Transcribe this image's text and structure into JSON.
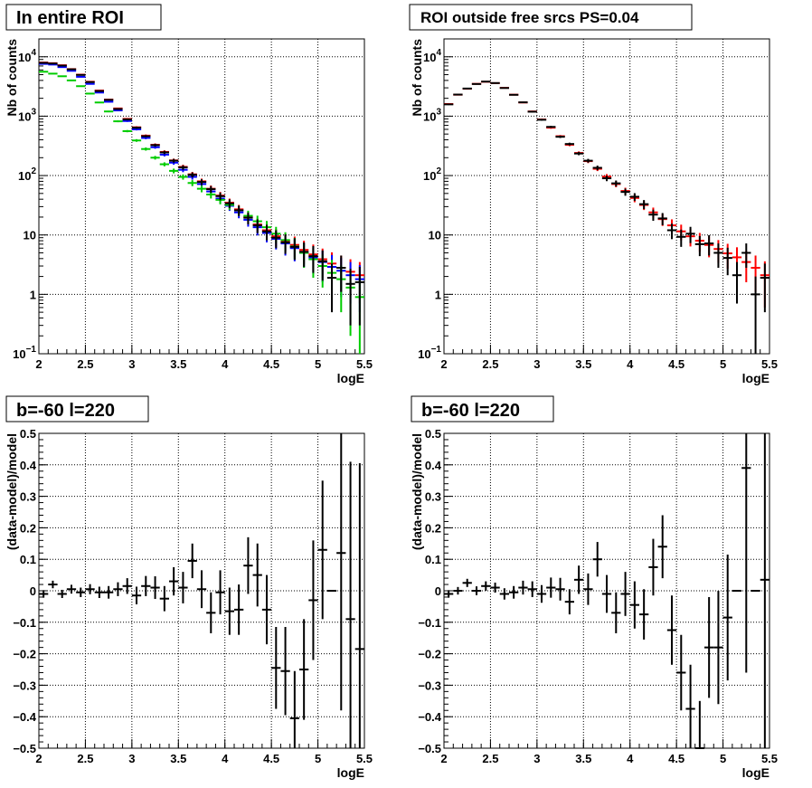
{
  "chart_data": [
    {
      "type": "scatter",
      "title": "In entire ROI",
      "xlabel": "logE",
      "ylabel": "Nb of counts",
      "xlim": [
        2,
        5.5
      ],
      "ylim": [
        0.1,
        20000
      ],
      "yscale": "log",
      "grid": true,
      "x_ticks": [
        "2",
        "2.5",
        "3",
        "3.5",
        "4",
        "4.5",
        "5",
        "5.5"
      ],
      "y_ticks": [
        "10^-1",
        "1",
        "10",
        "10^2",
        "10^3",
        "10^4"
      ],
      "series": [
        {
          "color": "#ff0000",
          "x": [
            2.05,
            2.15,
            2.25,
            2.35,
            2.45,
            2.55,
            2.65,
            2.75,
            2.85,
            2.95,
            3.05,
            3.15,
            3.25,
            3.35,
            3.45,
            3.55,
            3.65,
            3.75,
            3.85,
            3.95,
            4.05,
            4.15,
            4.25,
            4.35,
            4.45,
            4.55,
            4.65,
            4.75,
            4.85,
            4.95,
            5.05,
            5.15,
            5.25,
            5.35,
            5.45
          ],
          "y": [
            8000,
            7800,
            7200,
            6200,
            5000,
            3800,
            2700,
            1900,
            1350,
            900,
            650,
            470,
            330,
            250,
            180,
            140,
            105,
            80,
            60,
            46,
            35,
            27,
            20,
            15,
            12,
            9.5,
            8,
            6.8,
            5.6,
            4.7,
            3.9,
            3.3,
            2.8,
            2.4,
            2.1
          ],
          "yerr": [
            90,
            88,
            85,
            79,
            71,
            62,
            52,
            44,
            37,
            30,
            25,
            22,
            18,
            16,
            13,
            12,
            10,
            9,
            8,
            7,
            6,
            5,
            4.5,
            3.9,
            3.5,
            3.1,
            2.8,
            2.6,
            2.4,
            2.2,
            2.0,
            1.8,
            1.7,
            1.5,
            1.4
          ]
        },
        {
          "color": "#0000ff",
          "x": [
            2.05,
            2.15,
            2.25,
            2.35,
            2.45,
            2.55,
            2.65,
            2.75,
            2.85,
            2.95,
            3.05,
            3.15,
            3.25,
            3.35,
            3.45,
            3.55,
            3.65,
            3.75,
            3.85,
            3.95,
            4.05,
            4.15,
            4.25,
            4.35,
            4.45,
            4.55,
            4.65,
            4.75,
            4.85,
            4.95,
            5.05,
            5.15,
            5.25,
            5.35,
            5.45
          ],
          "y": [
            7600,
            7400,
            6700,
            5800,
            4600,
            3500,
            2500,
            1750,
            1250,
            830,
            600,
            430,
            300,
            225,
            165,
            125,
            95,
            72,
            54,
            41,
            31,
            24,
            18,
            13.5,
            10.8,
            8.6,
            7.2,
            6,
            5,
            4.2,
            3.5,
            2.9,
            2.5,
            2.1,
            1.8
          ],
          "yerr": [
            87,
            86,
            82,
            76,
            68,
            59,
            50,
            42,
            35,
            29,
            24,
            21,
            17,
            15,
            13,
            11,
            9.7,
            8.5,
            7.3,
            6.4,
            5.6,
            4.9,
            4.2,
            3.7,
            3.3,
            2.9,
            2.7,
            2.4,
            2.2,
            2.0,
            1.9,
            1.7,
            1.6,
            1.4,
            1.3
          ]
        },
        {
          "color": "#00cc00",
          "x": [
            2.05,
            2.15,
            2.25,
            2.35,
            2.45,
            2.55,
            2.65,
            2.75,
            2.85,
            2.95,
            3.05,
            3.15,
            3.25,
            3.35,
            3.45,
            3.55,
            3.65,
            3.75,
            3.85,
            3.95,
            4.05,
            4.15,
            4.25,
            4.35,
            4.45,
            4.55,
            4.65,
            4.75,
            4.85,
            4.95,
            5.05,
            5.15,
            5.25,
            5.35,
            5.45
          ],
          "y": [
            5600,
            5200,
            4700,
            4000,
            3200,
            2400,
            1700,
            1200,
            820,
            560,
            390,
            280,
            200,
            155,
            120,
            95,
            75,
            60,
            48,
            39,
            32,
            26,
            21,
            17,
            13.5,
            10.5,
            8.2,
            6.4,
            5,
            3.9,
            3.0,
            2.3,
            1.8,
            1.3,
            0.9
          ],
          "yerr": [
            75,
            72,
            69,
            63,
            57,
            49,
            41,
            35,
            29,
            24,
            20,
            17,
            14,
            12,
            11,
            9.7,
            8.7,
            7.7,
            6.9,
            6.2,
            5.7,
            5.1,
            4.6,
            4.1,
            3.7,
            3.2,
            2.9,
            2.5,
            2.2,
            2.0,
            1.7,
            1.5,
            1.3,
            1.1,
            0.9
          ]
        },
        {
          "color": "#000000",
          "x": [
            2.05,
            2.15,
            2.25,
            2.35,
            2.45,
            2.55,
            2.65,
            2.75,
            2.85,
            2.95,
            3.05,
            3.15,
            3.25,
            3.35,
            3.45,
            3.55,
            3.65,
            3.75,
            3.85,
            3.95,
            4.05,
            4.15,
            4.25,
            4.35,
            4.45,
            4.55,
            4.65,
            4.75,
            4.85,
            4.95,
            5.05,
            5.15,
            5.25,
            5.35,
            5.45
          ],
          "y": [
            7900,
            7700,
            7100,
            6150,
            4950,
            3750,
            2650,
            1880,
            1320,
            880,
            640,
            460,
            325,
            245,
            178,
            137,
            103,
            78,
            59,
            45,
            34,
            26,
            19.5,
            14.5,
            11.5,
            9,
            7.5,
            6.3,
            5.2,
            4.4,
            3.6,
            1.9,
            2.8,
            1.5,
            1.6
          ],
          "yerr": [
            89,
            88,
            84,
            78,
            70,
            61,
            51,
            43,
            36,
            30,
            25,
            21,
            18,
            16,
            13,
            12,
            10,
            8.8,
            7.7,
            6.7,
            5.8,
            5.1,
            4.4,
            3.8,
            3.4,
            3.0,
            2.7,
            2.5,
            2.3,
            2.1,
            1.9,
            1.4,
            1.7,
            1.2,
            1.3
          ]
        }
      ]
    },
    {
      "type": "scatter",
      "title": "ROI outside free srcs PS=0.04",
      "xlabel": "logE",
      "ylabel": "Nb of counts",
      "xlim": [
        2,
        5.5
      ],
      "ylim": [
        0.1,
        20000
      ],
      "yscale": "log",
      "grid": true,
      "x_ticks": [
        "2",
        "2.5",
        "3",
        "3.5",
        "4",
        "4.5",
        "5",
        "5.5"
      ],
      "y_ticks": [
        "10^-1",
        "1",
        "10",
        "10^2",
        "10^3",
        "10^4"
      ],
      "series": [
        {
          "color": "#ff0000",
          "x": [
            2.05,
            2.15,
            2.25,
            2.35,
            2.45,
            2.55,
            2.65,
            2.75,
            2.85,
            2.95,
            3.05,
            3.15,
            3.25,
            3.35,
            3.45,
            3.55,
            3.65,
            3.75,
            3.85,
            3.95,
            4.05,
            4.15,
            4.25,
            4.35,
            4.45,
            4.55,
            4.65,
            4.75,
            4.85,
            4.95,
            5.05,
            5.15,
            5.25,
            5.35,
            5.45
          ],
          "y": [
            1600,
            2300,
            2900,
            3500,
            3800,
            3600,
            3000,
            2300,
            1700,
            1200,
            880,
            640,
            460,
            330,
            240,
            175,
            130,
            96,
            72,
            55,
            42,
            32,
            24,
            18.5,
            14.5,
            11.5,
            9.5,
            8,
            6.8,
            5.8,
            4.9,
            4.2,
            3.5,
            2.8,
            2.1
          ],
          "yerr": [
            40,
            48,
            54,
            59,
            62,
            60,
            55,
            48,
            41,
            35,
            30,
            25,
            21,
            18,
            15,
            13,
            11,
            9.8,
            8.5,
            7.4,
            6.5,
            5.7,
            4.9,
            4.3,
            3.8,
            3.4,
            3.1,
            2.8,
            2.6,
            2.4,
            2.2,
            2.0,
            1.9,
            1.7,
            1.5
          ]
        },
        {
          "color": "#000000",
          "x": [
            2.05,
            2.15,
            2.25,
            2.35,
            2.45,
            2.55,
            2.65,
            2.75,
            2.85,
            2.95,
            3.05,
            3.15,
            3.25,
            3.35,
            3.45,
            3.55,
            3.65,
            3.75,
            3.85,
            3.95,
            4.05,
            4.15,
            4.25,
            4.35,
            4.45,
            4.55,
            4.65,
            4.75,
            4.85,
            4.95,
            5.05,
            5.15,
            5.25,
            5.35,
            5.45
          ],
          "y": [
            1580,
            2310,
            2920,
            3480,
            3820,
            3610,
            2980,
            2290,
            1710,
            1190,
            870,
            660,
            450,
            340,
            235,
            178,
            135,
            90,
            74,
            53,
            44,
            33,
            22,
            19,
            12,
            9.3,
            10.5,
            7,
            7.2,
            5,
            4.1,
            2.1,
            5.0,
            1.0,
            1.9
          ],
          "yerr": [
            40,
            48,
            54,
            59,
            62,
            60,
            55,
            48,
            41,
            35,
            30,
            26,
            21,
            18,
            15,
            13,
            12,
            9.5,
            8.6,
            7.3,
            6.6,
            5.7,
            4.7,
            4.4,
            3.5,
            3.0,
            3.2,
            2.6,
            2.7,
            2.2,
            2.0,
            1.4,
            2.2,
            1.0,
            1.4
          ]
        }
      ]
    },
    {
      "type": "scatter",
      "title": "b=-60 l=220",
      "xlabel": "logE",
      "ylabel": "(data-model)/model",
      "xlim": [
        2,
        5.5
      ],
      "ylim": [
        -0.5,
        0.5
      ],
      "grid": true,
      "x_ticks": [
        "2",
        "2.5",
        "3",
        "3.5",
        "4",
        "4.5",
        "5",
        "5.5"
      ],
      "y_ticks": [
        "-0.5",
        "-0.4",
        "-0.3",
        "-0.2",
        "-0.1",
        "0",
        "0.1",
        "0.2",
        "0.3",
        "0.4",
        "0.5"
      ],
      "series": [
        {
          "color": "#000000",
          "x": [
            2.05,
            2.15,
            2.25,
            2.35,
            2.45,
            2.55,
            2.65,
            2.75,
            2.85,
            2.95,
            3.05,
            3.15,
            3.25,
            3.35,
            3.45,
            3.55,
            3.65,
            3.75,
            3.85,
            3.95,
            4.05,
            4.15,
            4.25,
            4.35,
            4.45,
            4.55,
            4.65,
            4.75,
            4.85,
            4.95,
            5.05,
            5.15,
            5.25,
            5.35,
            5.45
          ],
          "y": [
            -0.01,
            0.02,
            -0.01,
            0.005,
            -0.005,
            0.005,
            -0.005,
            -0.005,
            0.005,
            0.015,
            -0.015,
            0.015,
            0.01,
            -0.025,
            0.03,
            0.01,
            0.095,
            0.005,
            -0.07,
            -0.005,
            -0.065,
            -0.06,
            0.08,
            0.05,
            -0.06,
            -0.245,
            -0.255,
            -0.405,
            -0.25,
            -0.03,
            0.13,
            0.0,
            0.12,
            -0.09,
            -0.185
          ],
          "yerr": [
            0.012,
            0.012,
            0.013,
            0.014,
            0.015,
            0.016,
            0.018,
            0.02,
            0.022,
            0.025,
            0.028,
            0.032,
            0.036,
            0.04,
            0.045,
            0.05,
            0.055,
            0.06,
            0.065,
            0.07,
            0.075,
            0.08,
            0.09,
            0.1,
            0.11,
            0.13,
            0.14,
            0.15,
            0.16,
            0.19,
            0.22,
            0.0,
            0.5,
            0.5,
            0.59
          ]
        }
      ]
    },
    {
      "type": "scatter",
      "title": "b=-60 l=220",
      "xlabel": "logE",
      "ylabel": "(data-model)/model",
      "xlim": [
        2,
        5.5
      ],
      "ylim": [
        -0.5,
        0.5
      ],
      "grid": true,
      "x_ticks": [
        "2",
        "2.5",
        "3",
        "3.5",
        "4",
        "4.5",
        "5",
        "5.5"
      ],
      "y_ticks": [
        "-0.5",
        "-0.4",
        "-0.3",
        "-0.2",
        "-0.1",
        "0",
        "0.1",
        "0.2",
        "0.3",
        "0.4",
        "0.5"
      ],
      "series": [
        {
          "color": "#000000",
          "x": [
            2.05,
            2.15,
            2.25,
            2.35,
            2.45,
            2.55,
            2.65,
            2.75,
            2.85,
            2.95,
            3.05,
            3.15,
            3.25,
            3.35,
            3.45,
            3.55,
            3.65,
            3.75,
            3.85,
            3.95,
            4.05,
            4.15,
            4.25,
            4.35,
            4.45,
            4.55,
            4.65,
            4.75,
            4.85,
            4.95,
            5.05,
            5.15,
            5.25,
            5.35,
            5.45
          ],
          "y": [
            -0.01,
            0.0,
            0.025,
            0.0,
            0.015,
            0.01,
            -0.01,
            -0.005,
            0.01,
            0.005,
            -0.01,
            0.01,
            0.005,
            -0.035,
            0.035,
            0.005,
            0.1,
            -0.01,
            -0.07,
            -0.01,
            -0.045,
            -0.075,
            0.075,
            0.14,
            -0.125,
            -0.26,
            -0.375,
            -0.5,
            -0.18,
            -0.18,
            -0.085,
            0.0,
            0.39,
            0.0,
            0.035
          ],
          "yerr": [
            0.012,
            0.012,
            0.013,
            0.014,
            0.015,
            0.016,
            0.018,
            0.02,
            0.022,
            0.025,
            0.028,
            0.032,
            0.036,
            0.04,
            0.045,
            0.05,
            0.055,
            0.06,
            0.065,
            0.07,
            0.075,
            0.08,
            0.09,
            0.1,
            0.11,
            0.12,
            0.14,
            0.15,
            0.16,
            0.18,
            0.2,
            0.0,
            0.65,
            0.0,
            0.6
          ]
        }
      ]
    }
  ]
}
